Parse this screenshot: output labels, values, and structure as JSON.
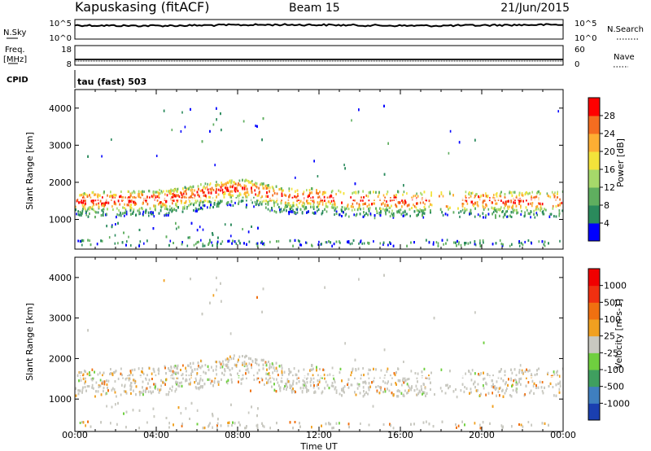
{
  "header": {
    "station": "Kapuskasing (fitACF)",
    "beam": "Beam 15",
    "date": "21/Jun/2015"
  },
  "nsky_panel": {
    "left_label": "N.Sky",
    "left_ticks": [
      "10^5",
      "10^0"
    ],
    "right_ticks": [
      "10^5",
      "10^0"
    ],
    "right_label": "N.Search"
  },
  "freq_panel": {
    "left_label_top": "Freq.",
    "left_label_unit": "[MHz]",
    "left_ticks": [
      "18",
      "8"
    ],
    "right_ticks": [
      "60",
      "0"
    ],
    "right_label": "Nave"
  },
  "cpid": {
    "label": "CPID",
    "program": "tau (fast) 503"
  },
  "chart_data": [
    {
      "type": "heatmap",
      "parameter": "power",
      "ylabel": "Slant Range [km]",
      "ylim": [
        200,
        4500
      ],
      "yticks": [
        "1000",
        "2000",
        "3000",
        "4000"
      ],
      "xlim": [
        0,
        24
      ],
      "colorbar": {
        "label": "Power [dB]",
        "range": [
          0,
          32
        ],
        "ticks": [
          "4",
          "8",
          "12",
          "16",
          "20",
          "24",
          "28"
        ],
        "colors": [
          "#0000ff",
          "#2a8a5c",
          "#5fae5f",
          "#a6d96a",
          "#f3e33a",
          "#fdae33",
          "#f46d20",
          "#ff0000"
        ]
      }
    },
    {
      "type": "heatmap",
      "parameter": "velocity",
      "ylabel": "Slant Range [km]",
      "ylim": [
        200,
        4500
      ],
      "yticks": [
        "1000",
        "2000",
        "3000",
        "4000"
      ],
      "xlim": [
        0,
        24
      ],
      "colorbar": {
        "label": "Velocity [m s-1]",
        "ticks": [
          "1000",
          "500",
          "100",
          "25",
          "-25",
          "-100",
          "-500",
          "-1000"
        ],
        "colors": [
          "#1a3fb0",
          "#3f7fbf",
          "#3f9f5f",
          "#6fcf3f",
          "#c8c8c0",
          "#f0a020",
          "#f07010",
          "#f03010",
          "#f00000"
        ]
      }
    }
  ],
  "x_axis": {
    "ticks": [
      "00:00",
      "04:00",
      "08:00",
      "12:00",
      "16:00",
      "20:00",
      "00:00"
    ],
    "label": "Time UT"
  }
}
